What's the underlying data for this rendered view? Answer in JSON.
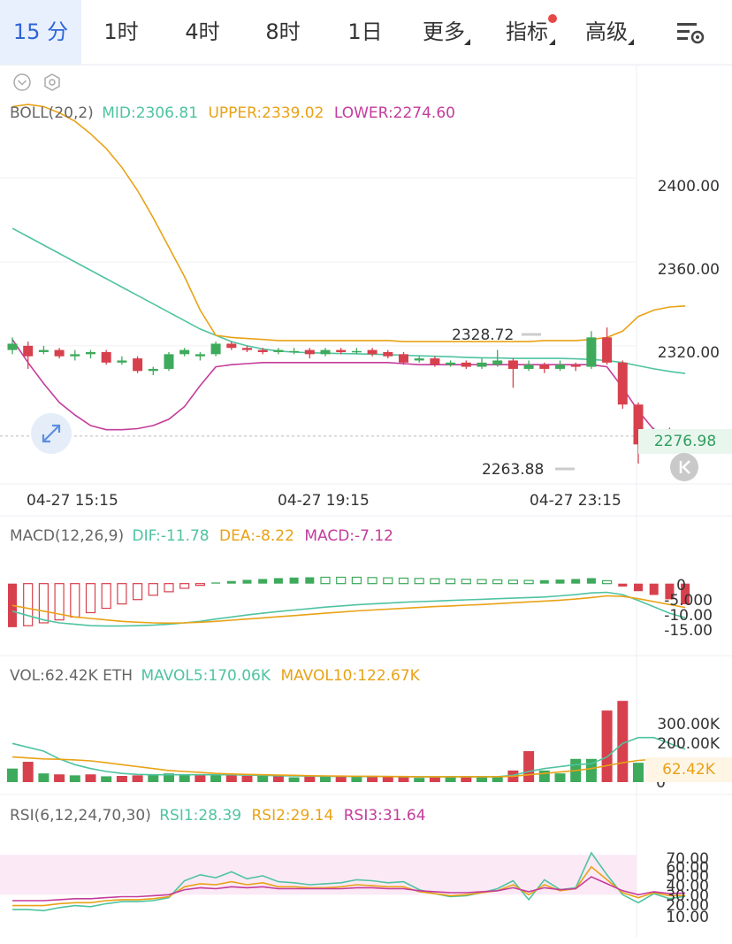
{
  "tabs": [
    {
      "label": "15 分",
      "active": true
    },
    {
      "label": "1时"
    },
    {
      "label": "4时"
    },
    {
      "label": "8时"
    },
    {
      "label": "1日"
    },
    {
      "label": "更多",
      "caret": true
    },
    {
      "label": "指标",
      "caret": true,
      "dot": true
    },
    {
      "label": "高级",
      "caret": true
    }
  ],
  "settings_icon": "chart-settings-icon",
  "boll": {
    "label": "BOLL(20,2)",
    "mid": "MID:2306.81",
    "upper": "UPPER:2339.02",
    "lower": "LOWER:2274.60"
  },
  "price_axis": [
    "2400.00",
    "2360.00",
    "2320.00"
  ],
  "current_price": "2276.98",
  "high_label": "2328.72",
  "low_label": "2263.88",
  "time_labels": [
    "04-27 15:15",
    "04-27 19:15",
    "04-27 23:15"
  ],
  "macd": {
    "label": "MACD(12,26,9)",
    "dif": "DIF:-11.78",
    "dea": "DEA:-8.22",
    "macd": "MACD:-7.12",
    "axis": [
      "0",
      "-5.000",
      "-10.00",
      "-15.00"
    ]
  },
  "vol": {
    "label": "VOL:62.42K ETH",
    "mavol5": "MAVOL5:170.06K",
    "mavol10": "MAVOL10:122.67K",
    "axis": [
      "300.00K",
      "200.00K",
      "0"
    ],
    "current": "62.42K"
  },
  "rsi": {
    "label": "RSI(6,12,24,70,30)",
    "rsi1": "RSI1:28.39",
    "rsi2": "RSI2:29.14",
    "rsi3": "RSI3:31.64",
    "axis": [
      "70.00",
      "60.00",
      "50.00",
      "40.00",
      "30.00",
      "20.00",
      "10.00"
    ]
  },
  "colors": {
    "up": "#3eaa5c",
    "down": "#d7404d",
    "mid": "#4fc3a1",
    "upper": "#e9a216",
    "lower": "#c43c9c",
    "rsi3": "#c43c9c",
    "accent": "#2f66d8"
  },
  "chart_data": [
    {
      "type": "candlestick",
      "title": "BOLL(20,2)",
      "x_labels": [
        "04-27 15:15",
        "04-27 19:15",
        "04-27 23:15"
      ],
      "ylim": [
        2255,
        2430
      ],
      "candles": [
        {
          "o": 2318,
          "c": 2321,
          "h": 2324,
          "l": 2316
        },
        {
          "o": 2320,
          "c": 2315,
          "h": 2322,
          "l": 2309
        },
        {
          "o": 2317,
          "c": 2318,
          "h": 2320,
          "l": 2316
        },
        {
          "o": 2318,
          "c": 2315,
          "h": 2319,
          "l": 2314
        },
        {
          "o": 2315,
          "c": 2316,
          "h": 2318,
          "l": 2313
        },
        {
          "o": 2316,
          "c": 2317,
          "h": 2318,
          "l": 2314
        },
        {
          "o": 2317,
          "c": 2312,
          "h": 2318,
          "l": 2311
        },
        {
          "o": 2312,
          "c": 2313,
          "h": 2315,
          "l": 2311
        },
        {
          "o": 2314,
          "c": 2308,
          "h": 2315,
          "l": 2307
        },
        {
          "o": 2308,
          "c": 2309,
          "h": 2310,
          "l": 2306
        },
        {
          "o": 2309,
          "c": 2316,
          "h": 2317,
          "l": 2308
        },
        {
          "o": 2316,
          "c": 2318,
          "h": 2319,
          "l": 2315
        },
        {
          "o": 2315,
          "c": 2316,
          "h": 2317,
          "l": 2313
        },
        {
          "o": 2316,
          "c": 2321,
          "h": 2322,
          "l": 2315
        },
        {
          "o": 2321,
          "c": 2319,
          "h": 2322,
          "l": 2318
        },
        {
          "o": 2319,
          "c": 2318,
          "h": 2320,
          "l": 2317
        },
        {
          "o": 2318,
          "c": 2317,
          "h": 2319,
          "l": 2316
        },
        {
          "o": 2317,
          "c": 2318,
          "h": 2319,
          "l": 2316
        },
        {
          "o": 2317,
          "c": 2317.5,
          "h": 2319,
          "l": 2316
        },
        {
          "o": 2318,
          "c": 2316,
          "h": 2319,
          "l": 2314
        },
        {
          "o": 2316,
          "c": 2318,
          "h": 2319,
          "l": 2315
        },
        {
          "o": 2318,
          "c": 2317,
          "h": 2319,
          "l": 2316
        },
        {
          "o": 2317,
          "c": 2317.5,
          "h": 2319,
          "l": 2316
        },
        {
          "o": 2318,
          "c": 2316,
          "h": 2319,
          "l": 2315
        },
        {
          "o": 2317,
          "c": 2315,
          "h": 2318,
          "l": 2314
        },
        {
          "o": 2316,
          "c": 2312,
          "h": 2317,
          "l": 2311
        },
        {
          "o": 2313,
          "c": 2314,
          "h": 2315,
          "l": 2312
        },
        {
          "o": 2314,
          "c": 2311,
          "h": 2315,
          "l": 2310
        },
        {
          "o": 2311,
          "c": 2312,
          "h": 2313,
          "l": 2310
        },
        {
          "o": 2312,
          "c": 2310,
          "h": 2313,
          "l": 2309
        },
        {
          "o": 2310,
          "c": 2312,
          "h": 2314,
          "l": 2309
        },
        {
          "o": 2311,
          "c": 2313,
          "h": 2318,
          "l": 2310
        },
        {
          "o": 2313,
          "c": 2309,
          "h": 2314,
          "l": 2300
        },
        {
          "o": 2309,
          "c": 2311,
          "h": 2313,
          "l": 2308
        },
        {
          "o": 2311,
          "c": 2309,
          "h": 2312,
          "l": 2307
        },
        {
          "o": 2309,
          "c": 2311,
          "h": 2313,
          "l": 2308
        },
        {
          "o": 2311,
          "c": 2310,
          "h": 2312,
          "l": 2308
        },
        {
          "o": 2310,
          "c": 2324,
          "h": 2327,
          "l": 2309
        },
        {
          "o": 2324,
          "c": 2312,
          "h": 2328.72,
          "l": 2311
        },
        {
          "o": 2312,
          "c": 2292,
          "h": 2313,
          "l": 2290
        },
        {
          "o": 2292,
          "c": 2273,
          "h": 2293,
          "l": 2263.88
        },
        {
          "o": 2274,
          "c": 2280,
          "h": 2281,
          "l": 2273
        },
        {
          "o": 2280,
          "c": 2273,
          "h": 2281,
          "l": 2271
        },
        {
          "o": 2274,
          "c": 2276.98,
          "h": 2278,
          "l": 2270
        }
      ],
      "series": [
        {
          "name": "MID",
          "values": [
            2376,
            2372,
            2368,
            2364,
            2360,
            2356,
            2352,
            2348,
            2344,
            2340,
            2336,
            2332,
            2328,
            2325,
            2322,
            2320,
            2318.5,
            2317.5,
            2317,
            2316.7,
            2316.5,
            2316.3,
            2316.2,
            2316,
            2315.8,
            2315.5,
            2315.2,
            2315,
            2314.8,
            2314.5,
            2314.3,
            2314.2,
            2314,
            2314,
            2314,
            2314,
            2313.8,
            2313.5,
            2313,
            2312,
            2310.5,
            2309,
            2307.8,
            2306.81
          ]
        },
        {
          "name": "UPPER",
          "values": [
            2434,
            2435,
            2434,
            2431,
            2427,
            2421,
            2414,
            2405,
            2394,
            2381,
            2367,
            2353,
            2337,
            2325,
            2324,
            2323.5,
            2323,
            2322.5,
            2322.5,
            2322.5,
            2322.5,
            2322.5,
            2322.5,
            2322.5,
            2322.5,
            2322,
            2322,
            2322,
            2322,
            2322,
            2322,
            2322,
            2322,
            2322,
            2322.5,
            2322.5,
            2322.5,
            2323,
            2324,
            2327,
            2334,
            2337,
            2338.5,
            2339.02
          ]
        },
        {
          "name": "LOWER",
          "values": [
            2323,
            2312,
            2302,
            2293,
            2287,
            2282,
            2280,
            2280,
            2280.5,
            2282,
            2285,
            2291,
            2301,
            2310,
            2311,
            2311.5,
            2312,
            2312,
            2312,
            2312,
            2312,
            2312,
            2312,
            2312,
            2312,
            2311.5,
            2311,
            2311,
            2311,
            2311,
            2311,
            2311,
            2311,
            2311,
            2311,
            2311,
            2311,
            2311,
            2310,
            2300,
            2289,
            2280,
            2276,
            2274.6
          ]
        }
      ]
    },
    {
      "type": "bar",
      "title": "MACD(12,26,9)",
      "ylim": [
        -19,
        6
      ],
      "values": [
        -15,
        -14.5,
        -13.5,
        -12.5,
        -11.5,
        -10,
        -8.5,
        -7,
        -5.5,
        -4,
        -2.8,
        -1.6,
        -0.6,
        0.4,
        0.9,
        1.3,
        1.6,
        1.9,
        2.1,
        2.2,
        2.2,
        2.2,
        2.2,
        2.1,
        2.0,
        1.9,
        1.8,
        1.7,
        1.6,
        1.5,
        1.4,
        1.3,
        1.2,
        1.1,
        1.2,
        1.4,
        1.6,
        1.9,
        1.0,
        -1.0,
        -2.6,
        -3.9,
        -5.4,
        -7.12
      ],
      "series": [
        {
          "name": "DIF",
          "values": [
            -9.5,
            -11,
            -12.5,
            -13.5,
            -14,
            -14.5,
            -14.6,
            -14.6,
            -14.5,
            -14.3,
            -14,
            -13.5,
            -13,
            -12.2,
            -11.5,
            -10.8,
            -10.2,
            -9.6,
            -9.1,
            -8.6,
            -8.1,
            -7.7,
            -7.3,
            -7.0,
            -6.7,
            -6.4,
            -6.2,
            -6.0,
            -5.8,
            -5.6,
            -5.4,
            -5.2,
            -5.0,
            -4.8,
            -4.6,
            -4.2,
            -3.8,
            -3.2,
            -3.0,
            -3.8,
            -5.8,
            -8.0,
            -10.2,
            -11.78
          ]
        },
        {
          "name": "DEA",
          "values": [
            -7.5,
            -8.5,
            -9.5,
            -10.5,
            -11.5,
            -12,
            -12.5,
            -13,
            -13.3,
            -13.5,
            -13.6,
            -13.5,
            -13.3,
            -13,
            -12.6,
            -12.2,
            -11.8,
            -11.4,
            -11,
            -10.6,
            -10.2,
            -9.8,
            -9.4,
            -9.1,
            -8.8,
            -8.5,
            -8.2,
            -7.9,
            -7.7,
            -7.4,
            -7.2,
            -6.9,
            -6.6,
            -6.3,
            -6.0,
            -5.7,
            -5.3,
            -4.8,
            -4.2,
            -4.4,
            -5.2,
            -6.2,
            -7.2,
            -8.22
          ]
        }
      ]
    },
    {
      "type": "bar",
      "title": "VOL:62.42K ETH",
      "ylim": [
        0,
        430
      ],
      "values": [
        70,
        105,
        45,
        40,
        35,
        40,
        30,
        32,
        35,
        40,
        45,
        40,
        35,
        38,
        40,
        33,
        32,
        30,
        25,
        30,
        28,
        32,
        30,
        28,
        32,
        25,
        22,
        26,
        30,
        28,
        25,
        30,
        60,
        160,
        60,
        45,
        120,
        120,
        370,
        420,
        100,
        90,
        75,
        62.42
      ],
      "up_down": [
        "u",
        "d",
        "u",
        "d",
        "u",
        "d",
        "u",
        "d",
        "d",
        "u",
        "u",
        "u",
        "d",
        "u",
        "d",
        "d",
        "u",
        "d",
        "u",
        "d",
        "u",
        "d",
        "u",
        "d",
        "d",
        "d",
        "u",
        "d",
        "u",
        "d",
        "u",
        "u",
        "d",
        "d",
        "u",
        "u",
        "u",
        "u",
        "d",
        "d",
        "u",
        "u",
        "d",
        "u"
      ],
      "series": [
        {
          "name": "MAVOL5",
          "values": [
            200,
            180,
            160,
            120,
            90,
            70,
            55,
            45,
            40,
            38,
            38,
            38,
            38,
            38,
            38,
            36,
            35,
            33,
            32,
            31,
            30,
            30,
            29,
            29,
            29,
            28,
            27,
            27,
            28,
            28,
            28,
            28,
            35,
            55,
            70,
            80,
            90,
            95,
            130,
            200,
            230,
            230,
            200,
            170.06
          ]
        },
        {
          "name": "MAVOL10",
          "values": [
            130,
            125,
            120,
            118,
            115,
            110,
            100,
            90,
            80,
            70,
            60,
            55,
            50,
            45,
            42,
            40,
            38,
            36,
            35,
            33,
            32,
            31,
            30,
            30,
            29,
            29,
            28,
            28,
            28,
            28,
            28,
            28,
            30,
            38,
            45,
            52,
            60,
            70,
            85,
            100,
            112,
            118,
            121,
            122.67
          ]
        }
      ]
    },
    {
      "type": "line",
      "title": "RSI(6,12,24,70,30)",
      "ylim": [
        0,
        80
      ],
      "bands": [
        30,
        70
      ],
      "series": [
        {
          "name": "RSI1",
          "values": [
            15,
            15,
            14,
            17,
            19,
            18,
            21,
            23,
            23,
            24,
            27,
            44,
            50,
            47,
            53,
            46,
            49,
            43,
            42,
            40,
            41,
            42,
            45,
            44,
            42,
            43,
            35,
            31,
            28,
            29,
            32,
            36,
            44,
            25,
            45,
            35,
            37,
            72,
            50,
            30,
            22,
            31,
            26,
            28.39
          ]
        },
        {
          "name": "RSI2",
          "values": [
            19,
            19,
            19,
            21,
            22,
            22,
            24,
            25,
            25,
            26,
            28,
            38,
            41,
            40,
            43,
            40,
            42,
            38,
            38,
            37,
            37,
            38,
            40,
            39,
            38,
            38,
            33,
            31,
            29,
            30,
            32,
            34,
            40,
            30,
            40,
            34,
            36,
            58,
            45,
            32,
            27,
            32,
            29,
            29.14
          ]
        },
        {
          "name": "RSI3",
          "values": [
            24,
            24,
            24,
            25,
            26,
            26,
            27,
            28,
            28,
            29,
            30,
            35,
            37,
            36,
            38,
            37,
            38,
            36,
            36,
            36,
            36,
            36,
            37,
            37,
            36,
            36,
            34,
            33,
            32,
            32,
            33,
            34,
            37,
            33,
            37,
            35,
            36,
            48,
            41,
            34,
            30,
            33,
            31,
            31.64
          ]
        }
      ]
    }
  ]
}
